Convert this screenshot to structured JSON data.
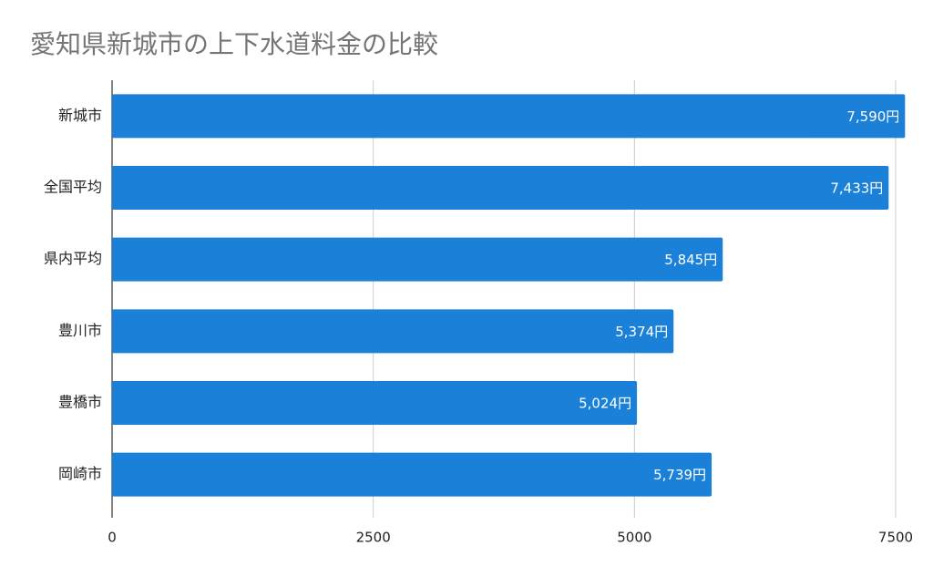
{
  "chart_data": {
    "type": "bar",
    "orientation": "horizontal",
    "title": "愛知県新城市の上下水道料金の比較",
    "categories": [
      "新城市",
      "全国平均",
      "県内平均",
      "豊川市",
      "豊橋市",
      "岡崎市"
    ],
    "values": [
      7590,
      7433,
      5845,
      5374,
      5024,
      5739
    ],
    "value_labels": [
      "7,590円",
      "7,433円",
      "5,845円",
      "5,374円",
      "5,024円",
      "5,739円"
    ],
    "color": "#1b80d8",
    "xlim": [
      0,
      7500
    ],
    "xticks": [
      0,
      2500,
      5000,
      7500
    ],
    "grid": true
  }
}
